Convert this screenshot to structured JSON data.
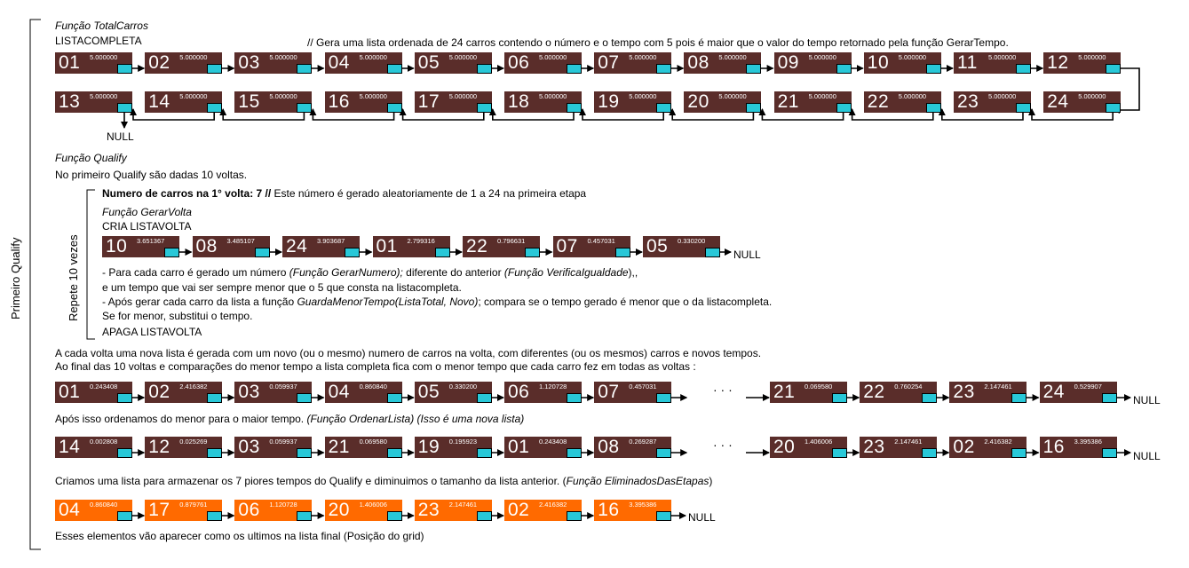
{
  "side_label": "Primeiro Qualify",
  "repeat_label": "Repete 10 vezes",
  "total_carros": {
    "func": "Função TotalCarros",
    "list_name": "LISTACOMPLETA",
    "comment": "// Gera uma lista ordenada de 24 carros contendo o número e o tempo com 5 pois é maior que o valor do tempo retornado pela função GerarTempo.",
    "row1": [
      {
        "num": "01",
        "time": "5.000000"
      },
      {
        "num": "02",
        "time": "5.000000"
      },
      {
        "num": "03",
        "time": "5.000000"
      },
      {
        "num": "04",
        "time": "5.000000"
      },
      {
        "num": "05",
        "time": "5.000000"
      },
      {
        "num": "06",
        "time": "5.000000"
      },
      {
        "num": "07",
        "time": "5.000000"
      },
      {
        "num": "08",
        "time": "5.000000"
      },
      {
        "num": "09",
        "time": "5.000000"
      },
      {
        "num": "10",
        "time": "5.000000"
      },
      {
        "num": "11",
        "time": "5.000000"
      },
      {
        "num": "12",
        "time": "5.000000"
      }
    ],
    "row2": [
      {
        "num": "13",
        "time": "5.000000"
      },
      {
        "num": "14",
        "time": "5.000000"
      },
      {
        "num": "15",
        "time": "5.000000"
      },
      {
        "num": "16",
        "time": "5.000000"
      },
      {
        "num": "17",
        "time": "5.000000"
      },
      {
        "num": "18",
        "time": "5.000000"
      },
      {
        "num": "19",
        "time": "5.000000"
      },
      {
        "num": "20",
        "time": "5.000000"
      },
      {
        "num": "21",
        "time": "5.000000"
      },
      {
        "num": "22",
        "time": "5.000000"
      },
      {
        "num": "23",
        "time": "5.000000"
      },
      {
        "num": "24",
        "time": "5.000000"
      }
    ],
    "null_label": "NULL"
  },
  "qualify": {
    "func": "Função Qualify",
    "intro": "No primeiro Qualify são dadas 10 voltas.",
    "cars_bold": "Numero de carros na 1° volta: 7 //",
    "cars_rest": " Este número é gerado aleatoriamente de 1 a 24 na primeira etapa",
    "gerar_volta": "Função GerarVolta",
    "cria": "CRIA LISTAVOLTA",
    "volta_list": [
      {
        "num": "10",
        "time": "3.651367"
      },
      {
        "num": "08",
        "time": "3.485107"
      },
      {
        "num": "24",
        "time": "3.903687"
      },
      {
        "num": "01",
        "time": "2.799316"
      },
      {
        "num": "22",
        "time": "0.796631"
      },
      {
        "num": "07",
        "time": "0.457031"
      },
      {
        "num": "05",
        "time": "0.330200"
      }
    ],
    "null_label": "NULL",
    "line1_a": "- Para cada carro é gerado um número ",
    "line1_b": "(Função GerarNumero);",
    "line1_c": " diferente do anterior ",
    "line1_d": "(Função VerificaIgualdade",
    "line1_e": "),,",
    "line2": "e um tempo que vai ser sempre menor que o 5 que consta na listacompleta.",
    "line3_a": "- Após gerar cada carro da lista a função ",
    "line3_b": "GuardaMenorTempo(ListaTotal, Novo)",
    "line3_c": "; compara se o tempo gerado é menor que o da listacompleta.",
    "line4": "Se for menor, substitui o tempo.",
    "apaga": "APAGA LISTAVOLTA"
  },
  "result": {
    "line1": "A cada volta uma nova lista é gerada com um novo (ou o mesmo) numero de carros na volta, com diferentes (ou os mesmos) carros e novos tempos.",
    "line2": "Ao final das 10 voltas e comparações do menor tempo a lista completa fica com o menor tempo que cada carro fez em todas as voltas :",
    "ellipsis": "· · ·",
    "list_a": [
      {
        "num": "01",
        "time": "0.243408"
      },
      {
        "num": "02",
        "time": "2.416382"
      },
      {
        "num": "03",
        "time": "0.059937"
      },
      {
        "num": "04",
        "time": "0.860840"
      },
      {
        "num": "05",
        "time": "0.330200"
      },
      {
        "num": "06",
        "time": "1.120728"
      },
      {
        "num": "07",
        "time": "0.457031"
      }
    ],
    "list_a_tail": [
      {
        "num": "21",
        "time": "0.069580"
      },
      {
        "num": "22",
        "time": "0.760254"
      },
      {
        "num": "23",
        "time": "2.147461"
      },
      {
        "num": "24",
        "time": "0.529907"
      }
    ],
    "null_label": "NULL",
    "order_a": "Após isso ordenamos do menor para o maior tempo. ",
    "order_b": "(Função OrdenarLista) (Isso é uma nova lista)",
    "list_b": [
      {
        "num": "14",
        "time": "0.002808"
      },
      {
        "num": "12",
        "time": "0.025269"
      },
      {
        "num": "03",
        "time": "0.059937"
      },
      {
        "num": "21",
        "time": "0.069580"
      },
      {
        "num": "19",
        "time": "0.195923"
      },
      {
        "num": "01",
        "time": "0.243408"
      },
      {
        "num": "08",
        "time": "0.269287"
      }
    ],
    "list_b_tail": [
      {
        "num": "20",
        "time": "1.406006"
      },
      {
        "num": "23",
        "time": "2.147461"
      },
      {
        "num": "02",
        "time": "2.416382"
      },
      {
        "num": "16",
        "time": "3.395386"
      }
    ],
    "elim_a": "Criamos uma lista para armazenar os 7 piores tempos do Qualify e diminuimos o tamanho da lista anterior. (",
    "elim_b": "Função EliminadosDasEtapas",
    "elim_c": ")",
    "list_c": [
      {
        "num": "04",
        "time": "0.860840"
      },
      {
        "num": "17",
        "time": "0.879761"
      },
      {
        "num": "06",
        "time": "1.120728"
      },
      {
        "num": "20",
        "time": "1.406006"
      },
      {
        "num": "23",
        "time": "2.147461"
      },
      {
        "num": "02",
        "time": "2.416382"
      },
      {
        "num": "16",
        "time": "3.395386"
      }
    ],
    "final": "Esses elementos vão aparecer como os ultimos na lista final (Posição do grid)"
  },
  "colors": {
    "node": "#5a2d2a",
    "node_orange": "#ff6a00",
    "pointer": "#28c8d8"
  }
}
